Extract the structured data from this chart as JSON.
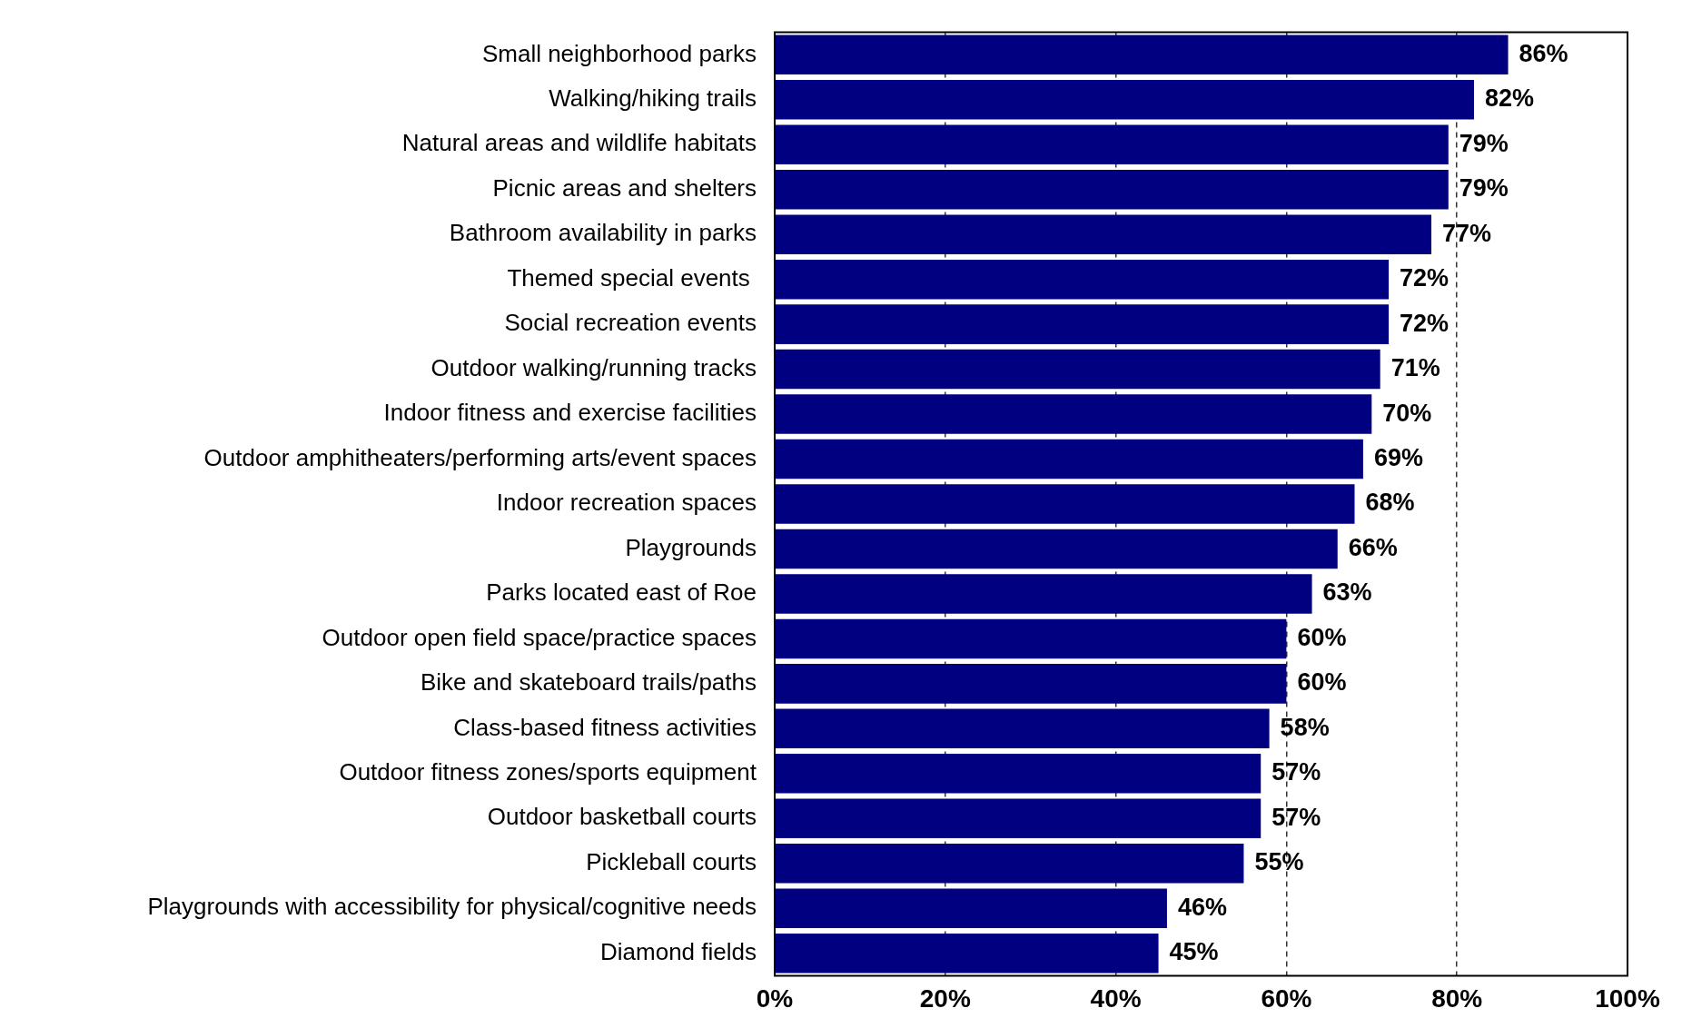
{
  "chart_data": {
    "type": "bar",
    "orientation": "horizontal",
    "categories": [
      "Small neighborhood parks",
      "Walking/hiking trails",
      "Natural areas and wildlife habitats",
      "Picnic areas and shelters",
      "Bathroom availability in parks",
      "Themed special events ",
      "Social recreation events",
      "Outdoor walking/running tracks",
      "Indoor fitness and exercise facilities",
      "Outdoor amphitheaters/performing arts/event spaces",
      "Indoor recreation spaces",
      "Playgrounds",
      "Parks located east of Roe",
      "Outdoor open field space/practice spaces",
      "Bike and skateboard trails/paths",
      "Class-based fitness activities",
      "Outdoor fitness zones/sports equipment",
      "Outdoor basketball courts",
      "Pickleball courts",
      "Playgrounds with accessibility for physical/cognitive needs",
      "Diamond fields"
    ],
    "values": [
      86,
      82,
      79,
      79,
      77,
      72,
      72,
      71,
      70,
      69,
      68,
      66,
      63,
      60,
      60,
      58,
      57,
      57,
      55,
      46,
      45
    ],
    "color": "#000080",
    "xlim": [
      0,
      100
    ],
    "xticks": [
      {
        "value": 0,
        "label": "0%"
      },
      {
        "value": 20,
        "label": "20%"
      },
      {
        "value": 40,
        "label": "40%"
      },
      {
        "value": 60,
        "label": "60%"
      },
      {
        "value": 80,
        "label": "80%"
      },
      {
        "value": 100,
        "label": "100%"
      }
    ],
    "grid": "x",
    "line_style": "dashed",
    "data_labels": true,
    "value_labels": [
      "86%",
      "82%",
      "79%",
      "79%",
      "77%",
      "72%",
      "72%",
      "71%",
      "70%",
      "69%",
      "68%",
      "66%",
      "63%",
      "60%",
      "60%",
      "58%",
      "57%",
      "57%",
      "55%",
      "46%",
      "45%"
    ]
  }
}
